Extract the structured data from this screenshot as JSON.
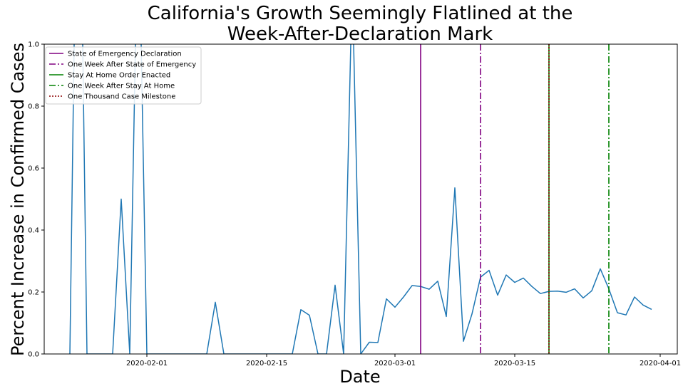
{
  "chart_data": {
    "type": "line",
    "title_lines": [
      "California's Growth Seemingly Flatlined at the",
      "Week-After-Declaration Mark"
    ],
    "xlabel": "Date",
    "ylabel": "Percent Increase in Confirmed Cases",
    "xlim": [
      "2020-01-20",
      "2020-04-03"
    ],
    "ylim": [
      0,
      1.0
    ],
    "grid": false,
    "legend_position": "top-left",
    "yticks": [
      {
        "value": 0.0,
        "label": "0.0"
      },
      {
        "value": 0.2,
        "label": "0.2"
      },
      {
        "value": 0.4,
        "label": "0.4"
      },
      {
        "value": 0.6,
        "label": "0.6"
      },
      {
        "value": 0.8,
        "label": "0.8"
      },
      {
        "value": 1.0,
        "label": "1.0"
      }
    ],
    "xticks": [
      {
        "value": "2020-02-01",
        "label": "2020-02-01"
      },
      {
        "value": "2020-02-15",
        "label": "2020-02-15"
      },
      {
        "value": "2020-03-01",
        "label": "2020-03-01"
      },
      {
        "value": "2020-03-15",
        "label": "2020-03-15"
      },
      {
        "value": "2020-04-01",
        "label": "2020-04-01"
      }
    ],
    "series": [
      {
        "color": "#1f77b4",
        "points": [
          {
            "x": "2020-01-23",
            "y": 0.0
          },
          {
            "x": "2020-01-24",
            "y": 2.0
          },
          {
            "x": "2020-01-25",
            "y": 0.0
          },
          {
            "x": "2020-01-26",
            "y": 0.0
          },
          {
            "x": "2020-01-27",
            "y": 0.0
          },
          {
            "x": "2020-01-28",
            "y": 0.0
          },
          {
            "x": "2020-01-29",
            "y": 0.5
          },
          {
            "x": "2020-01-30",
            "y": 0.0
          },
          {
            "x": "2020-01-31",
            "y": 1.5
          },
          {
            "x": "2020-02-01",
            "y": 0.0
          },
          {
            "x": "2020-02-02",
            "y": 0.0
          },
          {
            "x": "2020-02-03",
            "y": 0.0
          },
          {
            "x": "2020-02-04",
            "y": 0.0
          },
          {
            "x": "2020-02-05",
            "y": 0.0
          },
          {
            "x": "2020-02-06",
            "y": 0.0
          },
          {
            "x": "2020-02-07",
            "y": 0.0
          },
          {
            "x": "2020-02-08",
            "y": 0.0
          },
          {
            "x": "2020-02-09",
            "y": 0.167
          },
          {
            "x": "2020-02-10",
            "y": 0.0
          },
          {
            "x": "2020-02-11",
            "y": 0.0
          },
          {
            "x": "2020-02-12",
            "y": 0.0
          },
          {
            "x": "2020-02-13",
            "y": 0.0
          },
          {
            "x": "2020-02-14",
            "y": 0.0
          },
          {
            "x": "2020-02-15",
            "y": 0.0
          },
          {
            "x": "2020-02-16",
            "y": 0.0
          },
          {
            "x": "2020-02-17",
            "y": 0.0
          },
          {
            "x": "2020-02-18",
            "y": 0.0
          },
          {
            "x": "2020-02-19",
            "y": 0.143
          },
          {
            "x": "2020-02-20",
            "y": 0.125
          },
          {
            "x": "2020-02-21",
            "y": 0.0
          },
          {
            "x": "2020-02-22",
            "y": 0.0
          },
          {
            "x": "2020-02-23",
            "y": 0.222
          },
          {
            "x": "2020-02-24",
            "y": 0.0
          },
          {
            "x": "2020-02-25",
            "y": 1.2
          },
          {
            "x": "2020-02-26",
            "y": 0.0
          },
          {
            "x": "2020-02-27",
            "y": 0.038
          },
          {
            "x": "2020-02-28",
            "y": 0.037
          },
          {
            "x": "2020-02-29",
            "y": 0.178
          },
          {
            "x": "2020-03-01",
            "y": 0.151
          },
          {
            "x": "2020-03-02",
            "y": 0.184
          },
          {
            "x": "2020-03-03",
            "y": 0.221
          },
          {
            "x": "2020-03-04",
            "y": 0.218
          },
          {
            "x": "2020-03-05",
            "y": 0.209
          },
          {
            "x": "2020-03-06",
            "y": 0.235
          },
          {
            "x": "2020-03-07",
            "y": 0.121
          },
          {
            "x": "2020-03-08",
            "y": 0.536
          },
          {
            "x": "2020-03-09",
            "y": 0.041
          },
          {
            "x": "2020-03-10",
            "y": 0.129
          },
          {
            "x": "2020-03-11",
            "y": 0.248
          },
          {
            "x": "2020-03-12",
            "y": 0.27
          },
          {
            "x": "2020-03-13",
            "y": 0.19
          },
          {
            "x": "2020-03-14",
            "y": 0.255
          },
          {
            "x": "2020-03-15",
            "y": 0.231
          },
          {
            "x": "2020-03-16",
            "y": 0.245
          },
          {
            "x": "2020-03-17",
            "y": 0.218
          },
          {
            "x": "2020-03-18",
            "y": 0.195
          },
          {
            "x": "2020-03-19",
            "y": 0.202
          },
          {
            "x": "2020-03-20",
            "y": 0.203
          },
          {
            "x": "2020-03-21",
            "y": 0.199
          },
          {
            "x": "2020-03-22",
            "y": 0.21
          },
          {
            "x": "2020-03-23",
            "y": 0.181
          },
          {
            "x": "2020-03-24",
            "y": 0.204
          },
          {
            "x": "2020-03-25",
            "y": 0.275
          },
          {
            "x": "2020-03-26",
            "y": 0.21
          },
          {
            "x": "2020-03-27",
            "y": 0.133
          },
          {
            "x": "2020-03-28",
            "y": 0.126
          },
          {
            "x": "2020-03-29",
            "y": 0.184
          },
          {
            "x": "2020-03-30",
            "y": 0.158
          },
          {
            "x": "2020-03-31",
            "y": 0.144
          }
        ]
      }
    ],
    "vlines": [
      {
        "name": "State of Emergency Declaration",
        "x": "2020-03-04",
        "color": "#800080",
        "style": "solid"
      },
      {
        "name": "One Week After State of Emergency",
        "x": "2020-03-11",
        "color": "#800080",
        "style": "dashdot"
      },
      {
        "name": "Stay At Home Order Enacted",
        "x": "2020-03-19",
        "color": "#008000",
        "style": "solid"
      },
      {
        "name": "One Week After Stay At Home",
        "x": "2020-03-26",
        "color": "#008000",
        "style": "dashdot"
      },
      {
        "name": "One Thousand Case Milestone",
        "x": "2020-03-19",
        "color": "#8b0000",
        "style": "densedot"
      }
    ]
  }
}
